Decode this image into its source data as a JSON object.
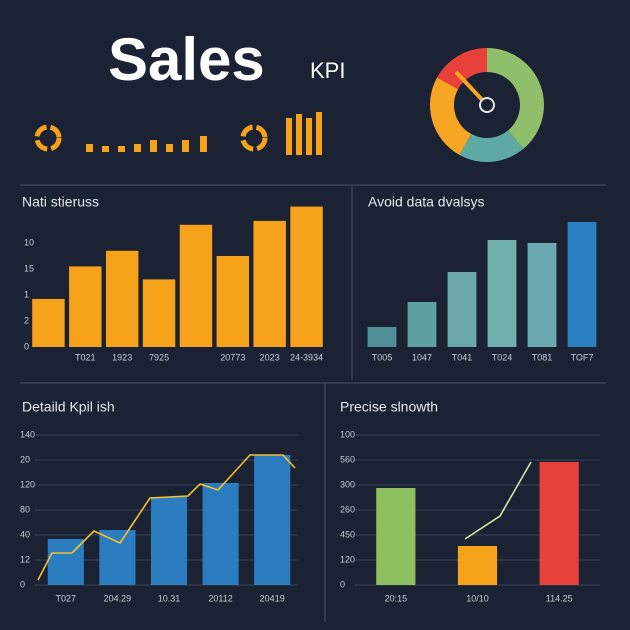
{
  "header": {
    "title": "Sales",
    "subtitle": "KPI"
  },
  "chart_data": [
    {
      "type": "bar",
      "title": "Nati stieruss",
      "categories": [
        null,
        "T021",
        "1923",
        "7925",
        null,
        "20773",
        "2023",
        "24-3934"
      ],
      "values": [
        1.85,
        3.1,
        3.7,
        2.6,
        4.7,
        3.5,
        4.85,
        5.4
      ],
      "color": "#f7a21b",
      "ylim": [
        0,
        5.5
      ],
      "yticks": [
        0,
        {
          "value": 1,
          "label": "2"
        },
        {
          "value": 2,
          "label": "1"
        },
        {
          "value": 3,
          "label": "15"
        },
        {
          "value": 4,
          "label": "10"
        }
      ]
    },
    {
      "type": "bar",
      "title": "Avoid data dvalsys",
      "categories": [
        "T005",
        "1047",
        "T041",
        "T024",
        "T081",
        "TOF7"
      ],
      "values": [
        20,
        45,
        75,
        107,
        104,
        125
      ],
      "colors": [
        "#4f8f95",
        "#5fa0a3",
        "#6aa9a8",
        "#72b0ad",
        "#6aa9b0",
        "#2a7fc0"
      ],
      "ylim": [
        0,
        130
      ]
    },
    {
      "type": "bar-line",
      "title": "Detaild Kpil ish",
      "categories": [
        "T027",
        "204.29",
        "10.31",
        "20112",
        "20419"
      ],
      "values": [
        1.84,
        2.2,
        3.52,
        4.08,
        5.2
      ],
      "color": "#2b7dbf",
      "ylim": [
        0,
        6.2
      ],
      "yticks": [
        0,
        {
          "value": 1,
          "label": "12"
        },
        {
          "value": 2,
          "label": "40"
        },
        {
          "value": 3,
          "label": "80"
        },
        {
          "value": 4,
          "label": "120"
        },
        {
          "value": 5,
          "label": "20"
        },
        {
          "value": 6,
          "label": "140"
        }
      ],
      "grid": true,
      "xlim": [
        0,
        260
      ],
      "line": {
        "color": "#f2c230",
        "x": [
          0,
          14,
          34,
          56,
          82,
          112,
          150,
          162,
          180,
          212,
          245,
          257
        ],
        "values": [
          0.2,
          1.28,
          1.28,
          2.16,
          1.68,
          3.48,
          3.56,
          4.04,
          3.8,
          5.2,
          5.2,
          4.68
        ]
      }
    },
    {
      "type": "bar-line",
      "title": "Precise slnowth",
      "categories": [
        "20:15",
        "10/10",
        "114.25"
      ],
      "values": [
        3.88,
        1.56,
        4.92
      ],
      "colors": [
        "#8fc060",
        "#f7a21b",
        "#e8403a"
      ],
      "ylim": [
        0,
        6.2
      ],
      "yticks": [
        0,
        {
          "value": 1,
          "label": "120"
        },
        {
          "value": 2,
          "label": "450"
        },
        {
          "value": 3,
          "label": "260"
        },
        {
          "value": 4,
          "label": "300"
        },
        {
          "value": 5,
          "label": "560"
        },
        {
          "value": 6,
          "label": "100"
        }
      ],
      "grid": true,
      "xlim": [
        0,
        100
      ],
      "line": {
        "color": "#cfe8a8",
        "x": [
          0,
          35,
          66
        ],
        "values": [
          1.84,
          2.76,
          4.92
        ]
      }
    },
    {
      "type": "donut",
      "values": [
        39,
        19,
        25,
        17
      ],
      "colors": [
        "#8fbf6a",
        "#5ea9a4",
        "#f6a623",
        "#e8403a"
      ]
    }
  ]
}
